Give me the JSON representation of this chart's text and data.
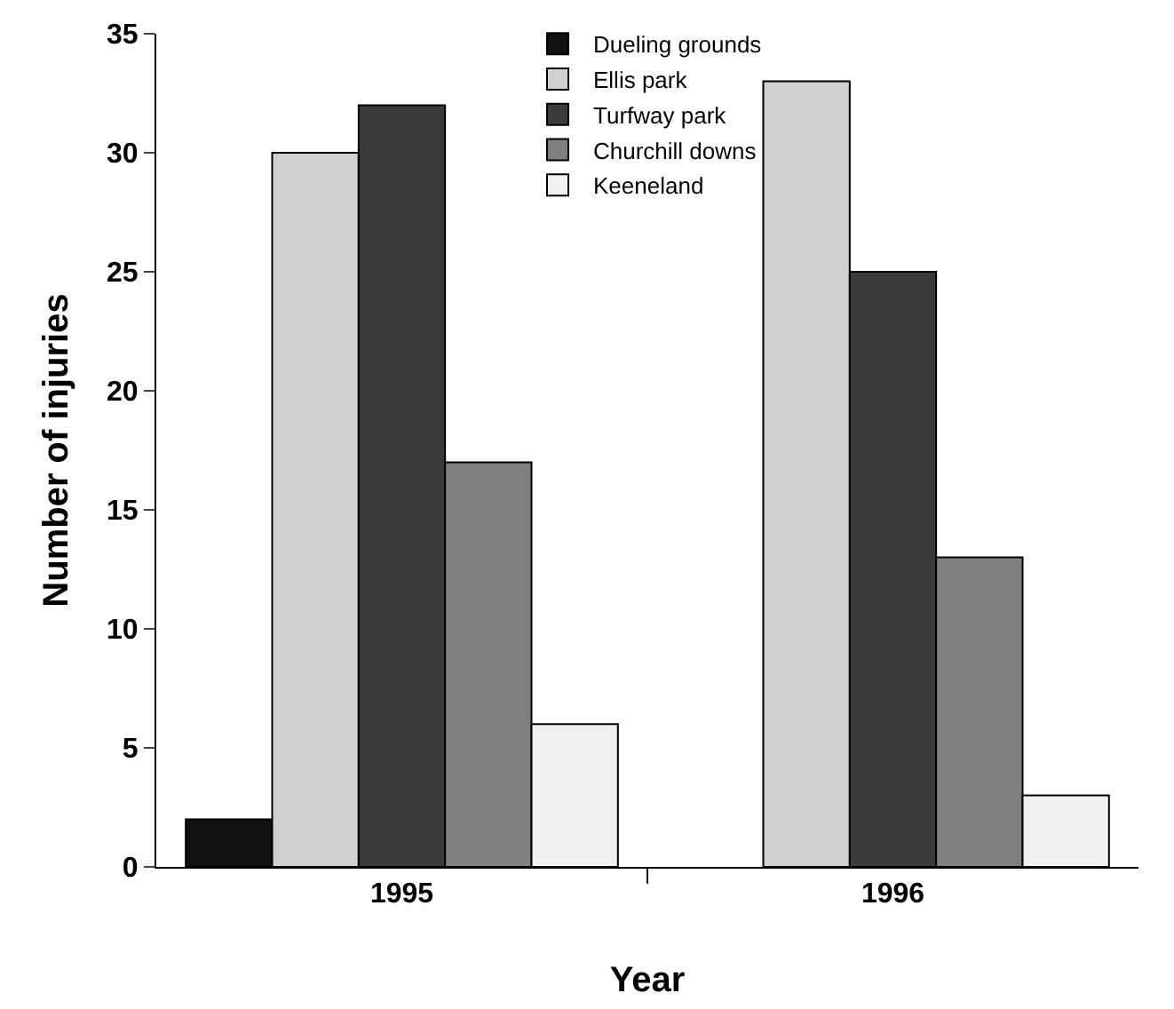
{
  "chart_data": {
    "type": "bar",
    "xlabel": "Year",
    "ylabel": "Number of injuries",
    "categories": [
      "1995",
      "1996"
    ],
    "series": [
      {
        "name": "Dueling grounds",
        "color": "#111111",
        "values": [
          2,
          null
        ]
      },
      {
        "name": "Ellis park",
        "color": "#d0d0d0",
        "values": [
          30,
          33
        ]
      },
      {
        "name": "Turfway park",
        "color": "#3a3a3a",
        "values": [
          32,
          25
        ]
      },
      {
        "name": "Churchill downs",
        "color": "#808080",
        "values": [
          17,
          13
        ]
      },
      {
        "name": "Keeneland",
        "color": "#f0f0f0",
        "values": [
          6,
          3
        ]
      }
    ],
    "ylim": [
      0,
      35
    ],
    "yticks": [
      0,
      5,
      10,
      15,
      20,
      25,
      30,
      35
    ],
    "grid": false,
    "legend": "top"
  }
}
